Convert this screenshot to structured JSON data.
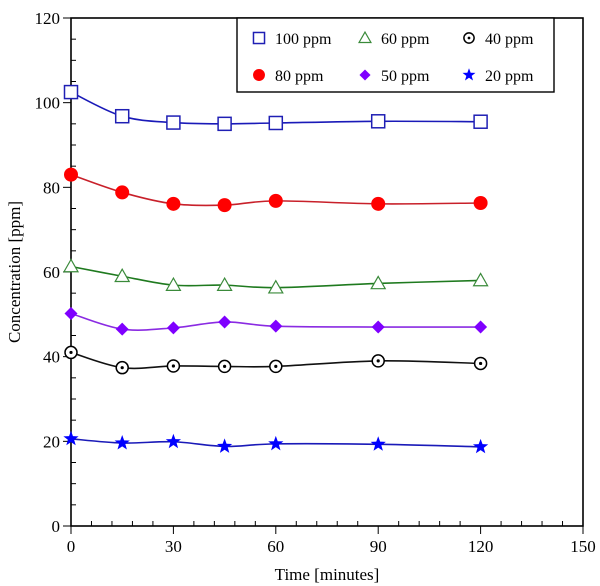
{
  "chart_data": {
    "type": "line",
    "title": "",
    "xlabel": "Time [minutes]",
    "ylabel": "Concentration [ppm]",
    "xlim": [
      0,
      150
    ],
    "ylim": [
      0,
      120
    ],
    "x_ticks": [
      0,
      30,
      60,
      90,
      120,
      150
    ],
    "y_ticks": [
      0,
      20,
      40,
      60,
      80,
      100,
      120
    ],
    "x_minor_step": 6,
    "y_minor_step": 5,
    "grid": false,
    "legend_position": "top-right",
    "x": [
      0,
      15,
      30,
      45,
      60,
      90,
      120
    ],
    "series": [
      {
        "name": "100 ppm",
        "marker": "square-open",
        "color": "#1f1fb4",
        "line_color": "#1a1ab8",
        "values": [
          102.5,
          96.8,
          95.3,
          95.0,
          95.2,
          95.6,
          95.5
        ]
      },
      {
        "name": "80 ppm",
        "marker": "circle-filled",
        "color": "#ff0000",
        "line_color": "#c8202a",
        "values": [
          83.0,
          78.8,
          76.1,
          75.8,
          76.8,
          76.1,
          76.3
        ]
      },
      {
        "name": "60 ppm",
        "marker": "triangle-open",
        "color": "#3a8a3a",
        "line_color": "#1f7a1f",
        "values": [
          61.3,
          59.0,
          56.9,
          56.9,
          56.3,
          57.3,
          58.0
        ]
      },
      {
        "name": "50 ppm",
        "marker": "diamond-filled",
        "color": "#7f00ff",
        "line_color": "#8a2be2",
        "values": [
          50.2,
          46.5,
          46.8,
          48.2,
          47.2,
          47.0,
          47.0
        ]
      },
      {
        "name": "40 ppm",
        "marker": "circle-dot",
        "color": "#000000",
        "line_color": "#111111",
        "values": [
          41.0,
          37.4,
          37.8,
          37.7,
          37.7,
          39.0,
          38.4
        ]
      },
      {
        "name": "20 ppm",
        "marker": "star-filled",
        "color": "#0000ff",
        "line_color": "#1a1ab8",
        "values": [
          20.6,
          19.6,
          19.9,
          18.8,
          19.4,
          19.3,
          18.7
        ]
      }
    ],
    "legend_order": [
      0,
      2,
      4,
      1,
      3,
      5
    ]
  }
}
